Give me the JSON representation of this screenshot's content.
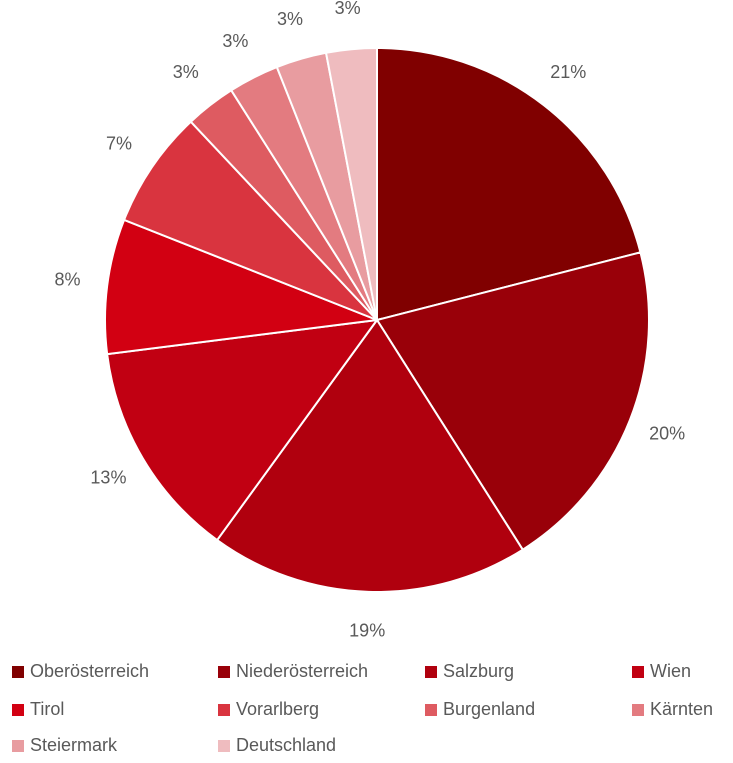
{
  "chart_data": {
    "type": "pie",
    "categories": [
      "Oberösterreich",
      "Niederösterreich",
      "Salzburg",
      "Wien",
      "Tirol",
      "Vorarlberg",
      "Burgenland",
      "Kärnten",
      "Steiermark",
      "Deutschland"
    ],
    "values": [
      21,
      20,
      19,
      13,
      8,
      7,
      3,
      3,
      3,
      3
    ],
    "value_labels": [
      "21%",
      "20%",
      "19%",
      "13%",
      "8%",
      "7%",
      "3%",
      "3%",
      "3%",
      "3%"
    ],
    "colors": [
      "#800000",
      "#990009",
      "#b0000e",
      "#c10012",
      "#d20012",
      "#d9343f",
      "#de5b61",
      "#e37b80",
      "#e89ca0",
      "#efbcbf"
    ],
    "legend": "bottom"
  }
}
